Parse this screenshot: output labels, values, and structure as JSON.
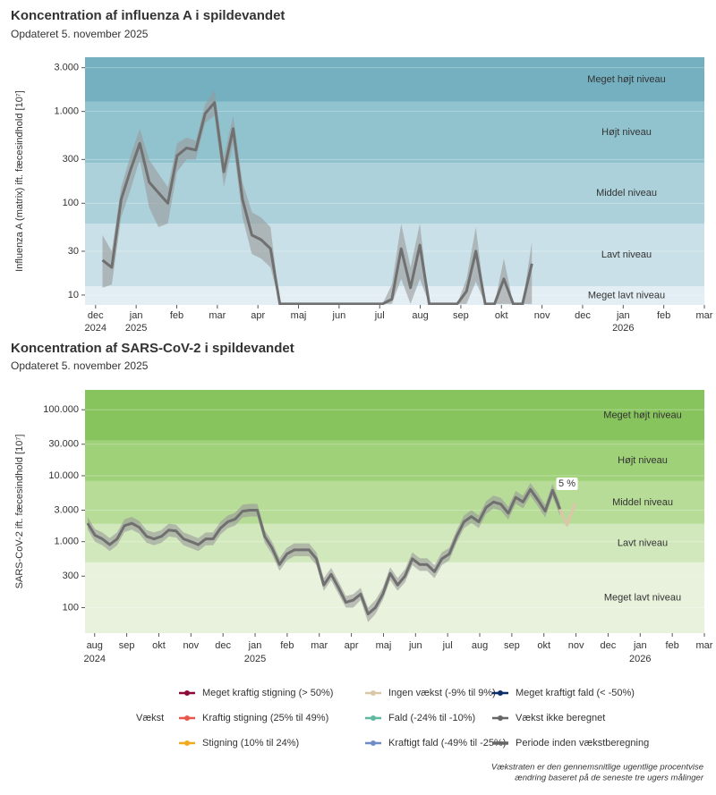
{
  "chart_data": [
    {
      "type": "line",
      "title": "Koncentration af influenza A i spildevandet",
      "subtitle": "Opdateret 5. november 2025",
      "ylabel": "Influenza A (matrix) ift. fæcesindhold [10⁷]",
      "log_y": true,
      "ylim": [
        7.8,
        3900
      ],
      "yticks": [
        10,
        30,
        100,
        300,
        {
          "value": 1000,
          "label": "1.000"
        },
        {
          "value": 3000,
          "label": "3.000"
        }
      ],
      "xlim": [
        -1.26,
        14
      ],
      "xticks": [
        {
          "value": -1,
          "label": "dec"
        },
        {
          "value": 0,
          "label": "jan"
        },
        {
          "value": 1,
          "label": "feb"
        },
        {
          "value": 2,
          "label": "mar"
        },
        {
          "value": 3,
          "label": "apr"
        },
        {
          "value": 4,
          "label": "maj"
        },
        {
          "value": 5,
          "label": "jun"
        },
        {
          "value": 6,
          "label": "jul"
        },
        {
          "value": 7,
          "label": "aug"
        },
        {
          "value": 8,
          "label": "sep"
        },
        {
          "value": 9,
          "label": "okt"
        },
        {
          "value": 10,
          "label": "nov"
        },
        {
          "value": 11,
          "label": "dec"
        },
        {
          "value": 12,
          "label": "jan"
        },
        {
          "value": 13,
          "label": "feb"
        },
        {
          "value": 14,
          "label": "mar"
        }
      ],
      "xtick_years": [
        {
          "value": -1,
          "label": "2024"
        },
        {
          "value": 0,
          "label": "2025"
        },
        {
          "value": 12,
          "label": "2026"
        }
      ],
      "levels": {
        "names": [
          "Meget lavt niveau",
          "Lavt niveau",
          "Middel niveau",
          "Højt niveau",
          "Meget højt niveau"
        ],
        "thresholds": [
          12.5,
          60,
          275,
          1275
        ],
        "colors": [
          "#e2eef3",
          "#c9e0e8",
          "#acd1db",
          "#91c3cf",
          "#74b0c0"
        ]
      },
      "x": [
        -0.83,
        -0.6,
        -0.37,
        -0.14,
        0.09,
        0.32,
        0.55,
        0.78,
        1.01,
        1.24,
        1.47,
        1.7,
        1.93,
        2.16,
        2.39,
        2.62,
        2.85,
        3.08,
        3.31,
        3.54,
        3.77,
        4.0,
        4.23,
        4.46,
        4.69,
        4.92,
        5.15,
        5.38,
        5.61,
        5.84,
        6.07,
        6.3,
        6.53,
        6.76,
        6.99,
        7.22,
        7.45,
        7.68,
        7.91,
        8.14,
        8.37,
        8.6,
        8.83,
        9.06,
        9.29,
        9.52,
        9.75
      ],
      "values": [
        24,
        20,
        110,
        230,
        450,
        170,
        130,
        100,
        330,
        400,
        380,
        950,
        1250,
        220,
        650,
        110,
        45,
        40,
        32,
        8,
        8,
        8,
        8,
        8,
        8,
        8,
        8,
        8,
        8,
        8,
        8,
        9,
        32,
        12,
        35,
        8,
        8,
        8,
        8,
        11,
        30,
        8,
        8,
        15,
        8,
        8,
        22
      ],
      "color": "#707070",
      "interval": {
        "color": "#9a9a9a",
        "lower": [
          12,
          13,
          70,
          140,
          300,
          90,
          55,
          60,
          220,
          300,
          300,
          750,
          900,
          150,
          450,
          70,
          28,
          25,
          20,
          8,
          8,
          8,
          8,
          8,
          8,
          8,
          8,
          8,
          8,
          8,
          8,
          8,
          15,
          8,
          15,
          8,
          8,
          8,
          8,
          8,
          14,
          8,
          8,
          8,
          8,
          8,
          8
        ],
        "upper": [
          45,
          30,
          150,
          330,
          650,
          300,
          210,
          150,
          450,
          520,
          480,
          1200,
          1700,
          320,
          900,
          170,
          80,
          70,
          55,
          8,
          8,
          8,
          8,
          8,
          8,
          8,
          8,
          8,
          8,
          8,
          8,
          13,
          60,
          20,
          60,
          8,
          8,
          8,
          8,
          15,
          55,
          8,
          8,
          25,
          8,
          8,
          38
        ]
      }
    },
    {
      "type": "line",
      "title": "Koncentration af SARS-CoV-2 i spildevandet",
      "subtitle": "Opdateret 5. november 2025",
      "ylabel": "SARS-CoV-2 ift. fæcesindhold [10⁷]",
      "log_y": true,
      "ylim": [
        41,
        200000
      ],
      "yticks": [
        100,
        300,
        {
          "value": 1000,
          "label": "1.000"
        },
        {
          "value": 3000,
          "label": "3.000"
        },
        {
          "value": 10000,
          "label": "10.000"
        },
        {
          "value": 30000,
          "label": "30.000"
        },
        {
          "value": 100000,
          "label": "100.000"
        }
      ],
      "xlim": [
        -5.3,
        14
      ],
      "xticks": [
        {
          "value": -5,
          "label": "aug"
        },
        {
          "value": -4,
          "label": "sep"
        },
        {
          "value": -3,
          "label": "okt"
        },
        {
          "value": -2,
          "label": "nov"
        },
        {
          "value": -1,
          "label": "dec"
        },
        {
          "value": 0,
          "label": "jan"
        },
        {
          "value": 1,
          "label": "feb"
        },
        {
          "value": 2,
          "label": "mar"
        },
        {
          "value": 3,
          "label": "apr"
        },
        {
          "value": 4,
          "label": "maj"
        },
        {
          "value": 5,
          "label": "jun"
        },
        {
          "value": 6,
          "label": "jul"
        },
        {
          "value": 7,
          "label": "aug"
        },
        {
          "value": 8,
          "label": "sep"
        },
        {
          "value": 9,
          "label": "okt"
        },
        {
          "value": 10,
          "label": "nov"
        },
        {
          "value": 11,
          "label": "dec"
        },
        {
          "value": 12,
          "label": "jan"
        },
        {
          "value": 13,
          "label": "feb"
        },
        {
          "value": 14,
          "label": "mar"
        }
      ],
      "xtick_years": [
        {
          "value": -5,
          "label": "2024"
        },
        {
          "value": 0,
          "label": "2025"
        },
        {
          "value": 12,
          "label": "2026"
        }
      ],
      "levels": {
        "names": [
          "Meget lavt niveau",
          "Lavt niveau",
          "Middel niveau",
          "Højt niveau",
          "Meget højt niveau"
        ],
        "thresholds": [
          485,
          1860,
          8300,
          34000
        ],
        "colors": [
          "#e8f2dd",
          "#d1e8bc",
          "#b7dc98",
          "#9fd179",
          "#88c45d"
        ]
      },
      "x": [
        -5.22,
        -4.99,
        -4.76,
        -4.53,
        -4.3,
        -4.07,
        -3.84,
        -3.61,
        -3.38,
        -3.15,
        -2.92,
        -2.69,
        -2.46,
        -2.23,
        -2.0,
        -1.77,
        -1.54,
        -1.31,
        -1.08,
        -0.85,
        -0.62,
        -0.39,
        -0.16,
        0.07,
        0.3,
        0.53,
        0.76,
        0.99,
        1.22,
        1.45,
        1.68,
        1.91,
        2.14,
        2.37,
        2.6,
        2.83,
        3.06,
        3.29,
        3.52,
        3.75,
        3.98,
        4.21,
        4.44,
        4.67,
        4.9,
        5.13,
        5.36,
        5.59,
        5.82,
        6.05,
        6.28,
        6.51,
        6.74,
        6.97,
        7.2,
        7.43,
        7.66,
        7.89,
        8.12,
        8.35,
        8.58,
        8.81,
        9.04,
        9.27,
        9.5
      ],
      "values": [
        1900,
        1250,
        1100,
        900,
        1100,
        1750,
        1900,
        1650,
        1200,
        1100,
        1200,
        1500,
        1450,
        1100,
        1000,
        900,
        1100,
        1100,
        1600,
        2000,
        2200,
        2900,
        3000,
        3000,
        1200,
        800,
        450,
        650,
        750,
        750,
        750,
        550,
        220,
        320,
        200,
        120,
        130,
        160,
        80,
        100,
        160,
        330,
        220,
        300,
        550,
        450,
        450,
        350,
        550,
        650,
        1200,
        2000,
        2400,
        2000,
        3300,
        4000,
        3700,
        2700,
        4700,
        4000,
        6200,
        4300,
        2900,
        6000,
        3100
      ],
      "color": "#707070",
      "interval": {
        "color": "#9a9a9a",
        "lower": [
          1520,
          1000,
          880,
          720,
          880,
          1400,
          1520,
          1320,
          960,
          880,
          960,
          1200,
          1160,
          880,
          800,
          720,
          880,
          880,
          1280,
          1600,
          1760,
          2320,
          2400,
          2400,
          960,
          640,
          360,
          520,
          600,
          600,
          600,
          440,
          180,
          260,
          160,
          100,
          100,
          130,
          60,
          80,
          130,
          260,
          180,
          240,
          440,
          360,
          360,
          280,
          440,
          520,
          960,
          1600,
          1920,
          1600,
          2640,
          3200,
          2960,
          2160,
          3760,
          3200,
          4960,
          3440,
          2320,
          4800,
          2480
        ],
        "upper": [
          2380,
          1560,
          1380,
          1130,
          1380,
          2190,
          2380,
          2060,
          1500,
          1380,
          1500,
          1880,
          1810,
          1380,
          1250,
          1130,
          1380,
          1380,
          2000,
          2500,
          2750,
          3630,
          3750,
          3750,
          1500,
          1000,
          560,
          810,
          940,
          940,
          940,
          690,
          280,
          400,
          250,
          150,
          160,
          200,
          100,
          130,
          200,
          410,
          280,
          380,
          690,
          560,
          560,
          440,
          690,
          810,
          1500,
          2500,
          3000,
          2500,
          4130,
          5000,
          4630,
          3380,
          5880,
          5000,
          7750,
          5380,
          3630,
          7500,
          3880
        ]
      },
      "projection": {
        "x": [
          9.5,
          9.72,
          9.97
        ],
        "values": [
          3100,
          1800,
          3800
        ],
        "color": "#d9c8a8"
      },
      "growth_label": "5 %"
    }
  ],
  "legend": {
    "title": "Vækst",
    "items": [
      {
        "label": "Meget kraftig stigning (> 50%)",
        "color": "#8b0a3a",
        "marker": true
      },
      {
        "label": "Kraftig stigning (25% til 49%)",
        "color": "#e8574a",
        "marker": true
      },
      {
        "label": "Stigning (10% til 24%)",
        "color": "#f2a91b",
        "marker": true
      },
      {
        "label": "Ingen vækst (-9% til 9%)",
        "color": "#d9c8a8",
        "marker": true
      },
      {
        "label": "Fald (-24% til -10%)",
        "color": "#5fb8a0",
        "marker": true
      },
      {
        "label": "Kraftigt fald (-49% til -25%)",
        "color": "#6f8cc8",
        "marker": true
      },
      {
        "label": "Meget kraftigt fald (< -50%)",
        "color": "#0b2e6b",
        "marker": true
      },
      {
        "label": "Vækst ikke beregnet",
        "color": "#666666",
        "marker": true
      },
      {
        "label": "Periode inden vækstberegning",
        "color": "#666666",
        "marker": false
      }
    ]
  },
  "note": [
    "Vækstraten er den gennemsnitlige ugentlige procentvise",
    "ændring baseret på de seneste tre ugers målinger"
  ]
}
